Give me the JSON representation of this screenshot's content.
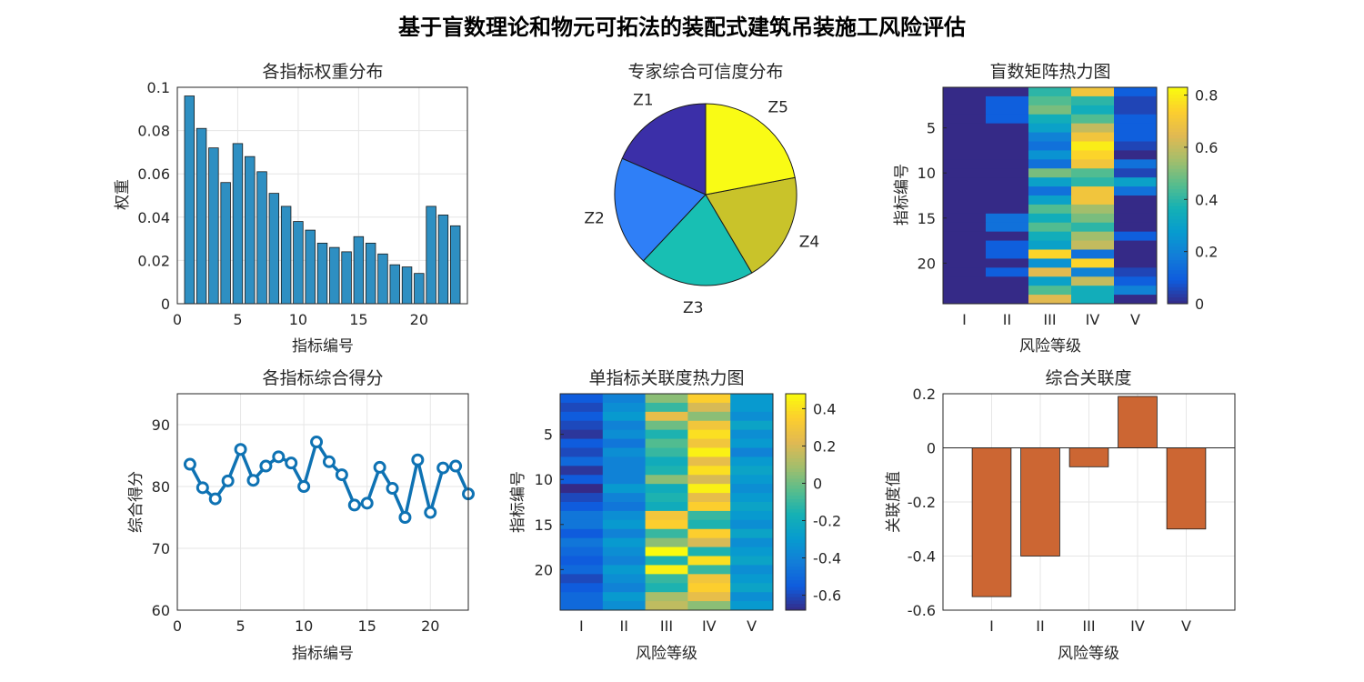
{
  "figure_title": "基于盲数理论和物元可拓法的装配式建筑吊装施工风险评估",
  "colors": {
    "bar_blue": "#2e8fc2",
    "line_blue": "#0e72b3",
    "bar_orange": "#cc6633",
    "axis": "#262626",
    "grid": "#e6e6e6"
  },
  "chart_data": [
    {
      "id": "weights",
      "type": "bar",
      "title": "各指标权重分布",
      "xlabel": "指标编号",
      "ylabel": "权重",
      "x": [
        1,
        2,
        3,
        4,
        5,
        6,
        7,
        8,
        9,
        10,
        11,
        12,
        13,
        14,
        15,
        16,
        17,
        18,
        19,
        20,
        21,
        22,
        23
      ],
      "values": [
        0.096,
        0.081,
        0.072,
        0.056,
        0.074,
        0.068,
        0.061,
        0.051,
        0.045,
        0.038,
        0.034,
        0.028,
        0.026,
        0.024,
        0.031,
        0.028,
        0.023,
        0.018,
        0.017,
        0.014,
        0.045,
        0.041,
        0.036
      ],
      "xlim": [
        0,
        24
      ],
      "ylim": [
        0,
        0.1
      ],
      "xticks": [
        0,
        5,
        10,
        15,
        20
      ],
      "yticks": [
        0,
        0.02,
        0.04,
        0.06,
        0.08,
        0.1
      ],
      "xtick_labels": [
        "0",
        "5",
        "10",
        "15",
        "20"
      ],
      "ytick_labels": [
        "0",
        "0.02",
        "0.04",
        "0.06",
        "0.08",
        "0.1"
      ],
      "grid": true
    },
    {
      "id": "experts",
      "type": "pie",
      "title": "专家综合可信度分布",
      "labels": [
        "Z1",
        "Z2",
        "Z3",
        "Z4",
        "Z5"
      ],
      "values": [
        0.185,
        0.195,
        0.205,
        0.195,
        0.22
      ],
      "colors": [
        "#3b2fa8",
        "#2f7ff7",
        "#18bfb3",
        "#c9c32a",
        "#f9fb15"
      ]
    },
    {
      "id": "blind_matrix",
      "type": "heatmap",
      "title": "盲数矩阵热力图",
      "xlabel": "风险等级",
      "ylabel": "指标编号",
      "x_categories": [
        "I",
        "II",
        "III",
        "IV",
        "V"
      ],
      "yticks": [
        5,
        10,
        15,
        20
      ],
      "ytick_labels": [
        "5",
        "10",
        "15",
        "20"
      ],
      "clim": [
        0,
        0.83
      ],
      "colorbar_ticks": [
        0,
        0.2,
        0.4,
        0.6,
        0.8
      ],
      "colorbar_tick_labels": [
        "0",
        "0.2",
        "0.4",
        "0.6",
        "0.8"
      ],
      "values": [
        [
          0.0,
          0.0,
          0.4,
          0.7,
          0.1
        ],
        [
          0.0,
          0.1,
          0.45,
          0.4,
          0.05
        ],
        [
          0.0,
          0.1,
          0.5,
          0.35,
          0.05
        ],
        [
          0.0,
          0.1,
          0.35,
          0.45,
          0.1
        ],
        [
          0.0,
          0.0,
          0.3,
          0.6,
          0.1
        ],
        [
          0.0,
          0.0,
          0.2,
          0.7,
          0.1
        ],
        [
          0.0,
          0.0,
          0.15,
          0.8,
          0.05
        ],
        [
          0.0,
          0.0,
          0.25,
          0.75,
          0.0
        ],
        [
          0.0,
          0.0,
          0.15,
          0.7,
          0.15
        ],
        [
          0.0,
          0.0,
          0.5,
          0.45,
          0.05
        ],
        [
          0.0,
          0.0,
          0.3,
          0.4,
          0.3
        ],
        [
          0.0,
          0.0,
          0.15,
          0.7,
          0.15
        ],
        [
          0.0,
          0.0,
          0.3,
          0.7,
          0.0
        ],
        [
          0.0,
          0.0,
          0.45,
          0.55,
          0.0
        ],
        [
          0.0,
          0.15,
          0.35,
          0.5,
          0.0
        ],
        [
          0.0,
          0.15,
          0.45,
          0.4,
          0.0
        ],
        [
          0.0,
          0.0,
          0.35,
          0.55,
          0.1
        ],
        [
          0.0,
          0.1,
          0.3,
          0.6,
          0.0
        ],
        [
          0.0,
          0.1,
          0.75,
          0.15,
          0.0
        ],
        [
          0.0,
          0.0,
          0.25,
          0.75,
          0.0
        ],
        [
          0.0,
          0.1,
          0.65,
          0.2,
          0.05
        ],
        [
          0.0,
          0.0,
          0.3,
          0.6,
          0.1
        ],
        [
          0.0,
          0.0,
          0.45,
          0.35,
          0.2
        ],
        [
          0.0,
          0.0,
          0.65,
          0.35,
          0.0
        ]
      ]
    },
    {
      "id": "scores",
      "type": "line",
      "title": "各指标综合得分",
      "xlabel": "指标编号",
      "ylabel": "综合得分",
      "x": [
        1,
        2,
        3,
        4,
        5,
        6,
        7,
        8,
        9,
        10,
        11,
        12,
        13,
        14,
        15,
        16,
        17,
        18,
        19,
        20,
        21,
        22,
        23
      ],
      "values": [
        83.6,
        79.8,
        78.0,
        80.9,
        86.0,
        81.0,
        83.3,
        84.8,
        83.8,
        80.0,
        87.2,
        84.0,
        81.9,
        77.0,
        77.3,
        83.1,
        79.7,
        75.0,
        84.3,
        75.8,
        83.0,
        83.3,
        78.8
      ],
      "xlim": [
        0,
        23
      ],
      "ylim": [
        60,
        95
      ],
      "xticks": [
        0,
        5,
        10,
        15,
        20
      ],
      "yticks": [
        60,
        70,
        80,
        90
      ],
      "xtick_labels": [
        "0",
        "5",
        "10",
        "15",
        "20"
      ],
      "ytick_labels": [
        "60",
        "70",
        "80",
        "90"
      ],
      "grid": true
    },
    {
      "id": "single_relevance",
      "type": "heatmap",
      "title": "单指标关联度热力图",
      "xlabel": "风险等级",
      "ylabel": "指标编号",
      "x_categories": [
        "I",
        "II",
        "III",
        "IV",
        "V"
      ],
      "yticks": [
        5,
        10,
        15,
        20
      ],
      "ytick_labels": [
        "5",
        "10",
        "15",
        "20"
      ],
      "clim": [
        -0.68,
        0.48
      ],
      "colorbar_ticks": [
        -0.6,
        -0.4,
        -0.2,
        0,
        0.2,
        0.4
      ],
      "colorbar_tick_labels": [
        "-0.6",
        "-0.4",
        "-0.2",
        "0",
        "0.2",
        "0.4"
      ],
      "values": [
        [
          -0.55,
          -0.4,
          0.05,
          0.35,
          -0.3
        ],
        [
          -0.6,
          -0.35,
          -0.1,
          0.2,
          -0.3
        ],
        [
          -0.55,
          -0.3,
          0.25,
          0.05,
          -0.35
        ],
        [
          -0.6,
          -0.4,
          0.0,
          0.3,
          -0.25
        ],
        [
          -0.65,
          -0.35,
          -0.15,
          0.4,
          -0.35
        ],
        [
          -0.55,
          -0.45,
          -0.05,
          0.3,
          -0.3
        ],
        [
          -0.6,
          -0.35,
          -0.1,
          0.45,
          -0.4
        ],
        [
          -0.5,
          -0.4,
          -0.2,
          0.25,
          -0.3
        ],
        [
          -0.65,
          -0.4,
          -0.15,
          0.4,
          -0.25
        ],
        [
          -0.55,
          -0.4,
          0.05,
          0.2,
          -0.3
        ],
        [
          -0.68,
          -0.3,
          -0.2,
          0.45,
          -0.35
        ],
        [
          -0.6,
          -0.4,
          -0.15,
          0.25,
          -0.3
        ],
        [
          -0.55,
          -0.45,
          -0.2,
          0.35,
          -0.25
        ],
        [
          -0.45,
          -0.35,
          0.3,
          -0.1,
          -0.3
        ],
        [
          -0.45,
          -0.3,
          0.35,
          -0.15,
          -0.35
        ],
        [
          -0.55,
          -0.4,
          -0.1,
          0.35,
          -0.25
        ],
        [
          -0.45,
          -0.3,
          0.05,
          0.2,
          -0.35
        ],
        [
          -0.5,
          -0.35,
          0.48,
          -0.15,
          -0.3
        ],
        [
          -0.55,
          -0.4,
          -0.15,
          0.4,
          -0.25
        ],
        [
          -0.5,
          -0.3,
          0.45,
          -0.1,
          -0.35
        ],
        [
          -0.6,
          -0.35,
          -0.1,
          0.3,
          -0.3
        ],
        [
          -0.55,
          -0.4,
          -0.15,
          0.35,
          -0.25
        ],
        [
          -0.5,
          -0.3,
          0.1,
          0.25,
          -0.35
        ],
        [
          -0.5,
          -0.35,
          0.15,
          0.05,
          -0.3
        ]
      ]
    },
    {
      "id": "overall",
      "type": "bar",
      "title": "综合关联度",
      "xlabel": "风险等级",
      "ylabel": "关联度值",
      "categories": [
        "I",
        "II",
        "III",
        "IV",
        "V"
      ],
      "values": [
        -0.55,
        -0.4,
        -0.07,
        0.19,
        -0.3
      ],
      "ylim": [
        -0.6,
        0.2
      ],
      "yticks": [
        -0.6,
        -0.4,
        -0.2,
        0,
        0.2
      ],
      "ytick_labels": [
        "-0.6",
        "-0.4",
        "-0.2",
        "0",
        "0.2"
      ],
      "grid": true
    }
  ]
}
